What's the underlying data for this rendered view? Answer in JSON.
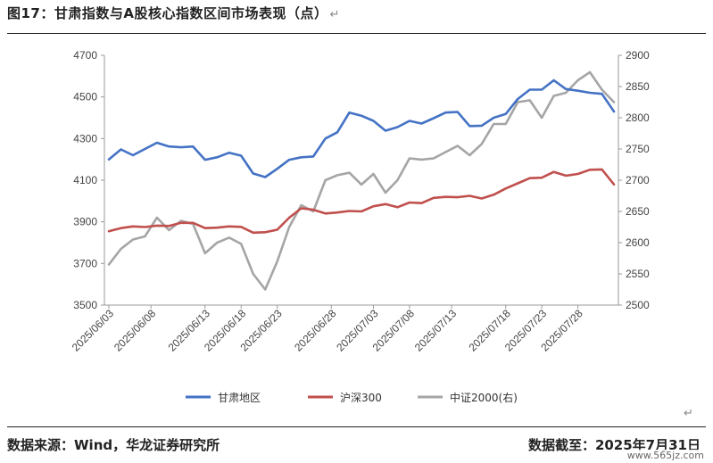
{
  "title": "图17：甘肃指数与A股核心指数区间市场表现（点）",
  "title_mark": "↵",
  "end_mark": "↵",
  "footer": {
    "source": "数据来源：Wind，华龙证券研究所",
    "date": "数据截至：2025年7月31日"
  },
  "watermark": "www.565jz.com",
  "chart_data": {
    "type": "line",
    "x": [
      "2025/06/03",
      "2025/06/04",
      "2025/06/05",
      "2025/06/06",
      "2025/06/09",
      "2025/06/10",
      "2025/06/11",
      "2025/06/12",
      "2025/06/13",
      "2025/06/16",
      "2025/06/17",
      "2025/06/18",
      "2025/06/19",
      "2025/06/20",
      "2025/06/23",
      "2025/06/24",
      "2025/06/25",
      "2025/06/26",
      "2025/06/27",
      "2025/06/30",
      "2025/07/01",
      "2025/07/02",
      "2025/07/03",
      "2025/07/04",
      "2025/07/07",
      "2025/07/08",
      "2025/07/09",
      "2025/07/10",
      "2025/07/11",
      "2025/07/14",
      "2025/07/15",
      "2025/07/16",
      "2025/07/17",
      "2025/07/18",
      "2025/07/21",
      "2025/07/22",
      "2025/07/23",
      "2025/07/24",
      "2025/07/25",
      "2025/07/28",
      "2025/07/29",
      "2025/07/30",
      "2025/07/31"
    ],
    "x_tick_labels": [
      "2025/06/03",
      "2025/06/08",
      "2025/06/13",
      "2025/06/18",
      "2025/06/23",
      "2025/06/28",
      "2025/07/03",
      "2025/07/08",
      "2025/07/13",
      "2025/07/18",
      "2025/07/23",
      "2025/07/28"
    ],
    "y_left": {
      "ylim": [
        3500,
        4700
      ],
      "ticks": [
        3500,
        3700,
        3900,
        4100,
        4300,
        4500,
        4700
      ]
    },
    "y_right": {
      "ylim": [
        2500,
        2900
      ],
      "ticks": [
        2500,
        2550,
        2600,
        2650,
        2700,
        2750,
        2800,
        2850,
        2900
      ]
    },
    "grid": false,
    "legend": "bottom",
    "series": [
      {
        "name": "甘肃地区",
        "axis": "left",
        "color": "#4472C4",
        "values": [
          4200,
          4248,
          4220,
          4250,
          4280,
          4262,
          4258,
          4262,
          4198,
          4210,
          4232,
          4218,
          4132,
          4115,
          4155,
          4198,
          4210,
          4214,
          4300,
          4330,
          4425,
          4410,
          4385,
          4338,
          4355,
          4385,
          4372,
          4398,
          4425,
          4428,
          4360,
          4362,
          4400,
          4418,
          4490,
          4535,
          4535,
          4580,
          4538,
          4530,
          4520,
          4515,
          4430
        ]
      },
      {
        "name": "沪深300",
        "axis": "left",
        "color": "#C0504D",
        "values": [
          3855,
          3870,
          3878,
          3875,
          3882,
          3880,
          3895,
          3895,
          3870,
          3872,
          3878,
          3876,
          3848,
          3850,
          3862,
          3920,
          3965,
          3958,
          3940,
          3945,
          3952,
          3950,
          3975,
          3985,
          3970,
          3993,
          3990,
          4015,
          4020,
          4018,
          4025,
          4012,
          4030,
          4060,
          4085,
          4110,
          4112,
          4140,
          4122,
          4130,
          4150,
          4152,
          4080
        ]
      },
      {
        "name": "中证2000(右)",
        "axis": "right",
        "color": "#A5A5A5",
        "values": [
          2565,
          2590,
          2605,
          2610,
          2640,
          2620,
          2635,
          2630,
          2583,
          2600,
          2608,
          2598,
          2550,
          2525,
          2570,
          2625,
          2660,
          2650,
          2700,
          2708,
          2712,
          2693,
          2710,
          2680,
          2700,
          2735,
          2733,
          2735,
          2745,
          2755,
          2740,
          2758,
          2790,
          2790,
          2825,
          2828,
          2800,
          2835,
          2840,
          2860,
          2873,
          2845,
          2825
        ]
      }
    ]
  }
}
